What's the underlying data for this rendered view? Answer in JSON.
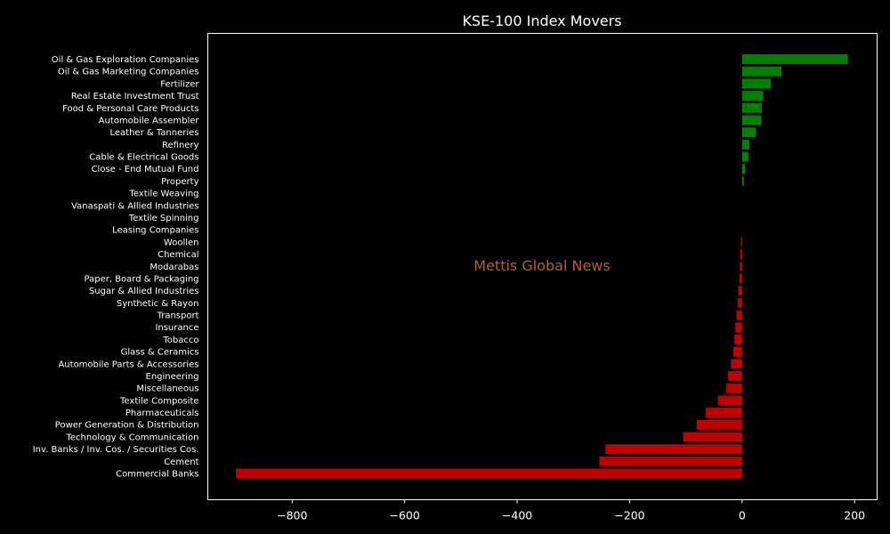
{
  "chart_data": {
    "type": "bar",
    "orientation": "horizontal",
    "title": "KSE-100 Index Movers",
    "xlabel": "",
    "ylabel": "",
    "xlim": [
      -950,
      240
    ],
    "xticks": [
      -800,
      -600,
      -400,
      -200,
      0,
      200
    ],
    "xtick_labels": [
      "−800",
      "−600",
      "−400",
      "−200",
      "0",
      "200"
    ],
    "grid": false,
    "legend": "none",
    "colors": {
      "positive": "#008000",
      "negative": "#c00000",
      "background": "#000000",
      "text": "#ffffff"
    },
    "categories": [
      "Oil & Gas Exploration Companies",
      "Oil & Gas Marketing Companies",
      "Fertilizer",
      "Real Estate Investment Trust",
      "Food & Personal Care Products",
      "Automobile Assembler",
      "Leather & Tanneries",
      "Refinery",
      "Cable & Electrical Goods",
      "Close - End Mutual Fund",
      "Property",
      "Textile Weaving",
      "Vanaspati & Allied Industries",
      "Textile Spinning",
      "Leasing Companies",
      "Woollen",
      "Chemical",
      "Modarabas",
      "Paper, Board & Packaging",
      "Sugar & Allied Industries",
      "Synthetic & Rayon",
      "Transport",
      "Insurance",
      "Tobacco",
      "Glass & Ceramics",
      "Automobile Parts & Accessories",
      "Engineering",
      "Miscellaneous",
      "Textile Composite",
      "Pharmaceuticals",
      "Power Generation & Distribution",
      "Technology & Communication",
      "Inv. Banks / Inv. Cos. / Securities Cos.",
      "Cement",
      "Commercial Banks"
    ],
    "values": [
      188,
      70,
      51,
      37,
      35,
      34,
      24,
      13,
      11,
      5,
      3,
      0,
      0,
      0,
      0,
      -2,
      -3,
      -4,
      -5,
      -7,
      -8,
      -10,
      -12,
      -14,
      -16,
      -20,
      -25,
      -28,
      -43,
      -65,
      -81,
      -105,
      -243,
      -254,
      -900
    ]
  },
  "watermark": {
    "text": "Mettis Global News",
    "color": "#b5602a"
  }
}
